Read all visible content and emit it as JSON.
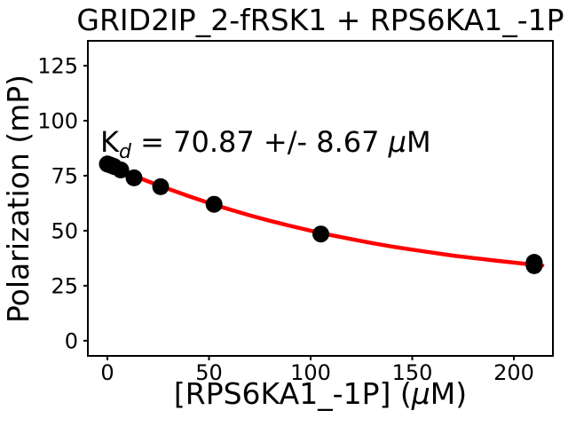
{
  "figure": {
    "title": "GRID2IP_2-fRSK1 + RPS6KA1_-1P",
    "ylabel": "Polarization (mP)",
    "xlabel_pre": "[RPS6KA1_-1P] (",
    "xlabel_mu": "μ",
    "xlabel_post": "M)",
    "annotation": {
      "base": "K",
      "sub": "d",
      "value": " = 70.87 +/- 8.67 ",
      "mu": "μ",
      "unit": "M"
    }
  },
  "chart_data": {
    "type": "scatter",
    "title": "GRID2IP_2-fRSK1 + RPS6KA1_-1P",
    "xlabel": "[RPS6KA1_-1P] (μM)",
    "ylabel": "Polarization (mP)",
    "annotation": "Kd = 70.87 +/- 8.67 μM",
    "kd_uM": 70.87,
    "kd_err_uM": 8.67,
    "xlim": [
      -9.6,
      219.2
    ],
    "ylim": [
      -6.9,
      136.3
    ],
    "x_ticks": [
      0,
      50,
      100,
      150,
      200
    ],
    "y_ticks": [
      0,
      25,
      50,
      75,
      100,
      125
    ],
    "grid": false,
    "legend": null,
    "colors": {
      "fit": "#ff0000",
      "points": "#000000",
      "text": "#000000",
      "background": "#ffffff"
    },
    "series": [
      {
        "name": "data",
        "type": "scatter",
        "color": "#000000",
        "x": [
          0,
          1.6,
          3.3,
          6.6,
          13.1,
          26.2,
          52.5,
          105,
          210,
          210
        ],
        "y": [
          80.3,
          79.8,
          79.2,
          77.6,
          74.0,
          70.0,
          62.0,
          48.5,
          35.6,
          34.1
        ]
      },
      {
        "name": "fit",
        "type": "line",
        "color": "#ff0000",
        "x": [
          0,
          10,
          20,
          30,
          40,
          50,
          60,
          70,
          80,
          90,
          100,
          110,
          120,
          130,
          140,
          150,
          160,
          170,
          180,
          190,
          200,
          210,
          214
        ],
        "y": [
          80.0,
          76.1,
          72.4,
          69.0,
          65.7,
          62.6,
          59.7,
          57.0,
          54.5,
          52.2,
          50.0,
          48.0,
          46.2,
          44.4,
          42.8,
          41.4,
          40.0,
          38.7,
          37.6,
          36.5,
          35.5,
          34.5,
          34.2
        ]
      }
    ]
  }
}
